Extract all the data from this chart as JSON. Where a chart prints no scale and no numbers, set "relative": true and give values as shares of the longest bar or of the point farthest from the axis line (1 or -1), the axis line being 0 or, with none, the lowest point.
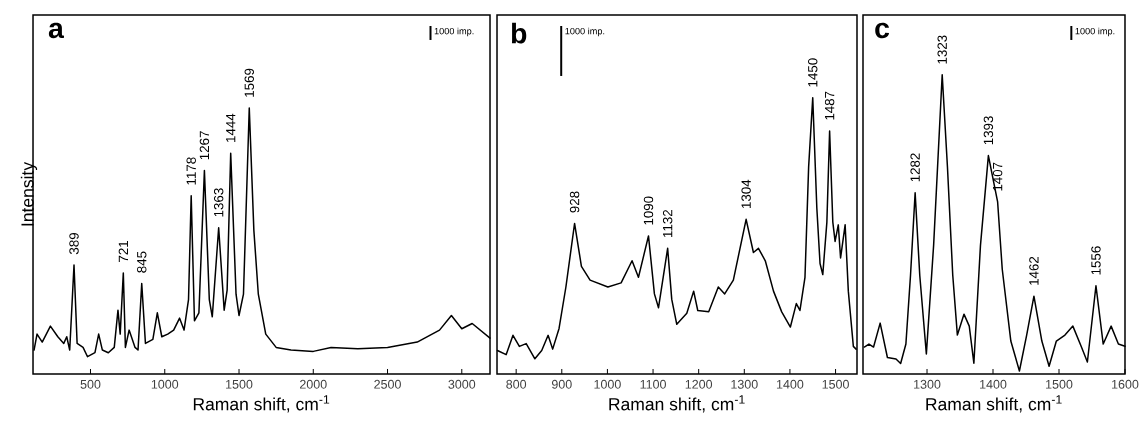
{
  "chart_data": [
    {
      "type": "line",
      "title": "a",
      "xlabel": "Raman shift, cm$^{-1}$",
      "ylabel": "Intensity",
      "relative": true,
      "color": "#000000",
      "xlim": [
        113,
        3190
      ],
      "xticks": [
        500,
        1000,
        1500,
        2000,
        2500,
        3000
      ],
      "x": [
        120,
        140,
        175,
        230,
        280,
        320,
        340,
        360,
        389,
        410,
        450,
        480,
        530,
        555,
        580,
        620,
        660,
        685,
        700,
        721,
        735,
        760,
        800,
        820,
        845,
        870,
        920,
        950,
        980,
        1020,
        1060,
        1100,
        1130,
        1160,
        1178,
        1200,
        1230,
        1267,
        1300,
        1320,
        1363,
        1400,
        1420,
        1444,
        1480,
        1500,
        1530,
        1569,
        1600,
        1630,
        1680,
        1750,
        1850,
        2000,
        2120,
        2300,
        2500,
        2700,
        2850,
        2930,
        3000,
        3070,
        3190
      ],
      "values": [
        0.09,
        0.15,
        0.12,
        0.18,
        0.14,
        0.115,
        0.14,
        0.09,
        0.41,
        0.115,
        0.1,
        0.065,
        0.08,
        0.15,
        0.09,
        0.08,
        0.1,
        0.24,
        0.15,
        0.38,
        0.1,
        0.165,
        0.1,
        0.09,
        0.34,
        0.115,
        0.13,
        0.23,
        0.14,
        0.15,
        0.165,
        0.21,
        0.165,
        0.28,
        0.67,
        0.2,
        0.23,
        0.765,
        0.28,
        0.215,
        0.55,
        0.24,
        0.315,
        0.83,
        0.3,
        0.22,
        0.3,
        1.0,
        0.54,
        0.3,
        0.15,
        0.1,
        0.09,
        0.085,
        0.1,
        0.095,
        0.1,
        0.12,
        0.165,
        0.22,
        0.17,
        0.19,
        0.135
      ],
      "annotations": [
        "1000 imp.",
        {
          "text": "389",
          "x": 389,
          "y": 0.41
        },
        {
          "text": "721",
          "x": 721,
          "y": 0.38
        },
        {
          "text": "845",
          "x": 845,
          "y": 0.34
        },
        {
          "text": "1178",
          "x": 1178,
          "y": 0.67
        },
        {
          "text": "1267",
          "x": 1267,
          "y": 0.765
        },
        {
          "text": "1363",
          "x": 1363,
          "y": 0.55
        },
        {
          "text": "1444",
          "x": 1444,
          "y": 0.83
        },
        {
          "text": "1569",
          "x": 1569,
          "y": 1.0
        }
      ]
    },
    {
      "type": "line",
      "title": "b",
      "xlabel": "Raman shift, cm$^{-1}$",
      "relative": true,
      "color": "#000000",
      "xlim": [
        758,
        1547
      ],
      "xticks": [
        800,
        900,
        1000,
        1100,
        1200,
        1300,
        1400,
        1500
      ],
      "x": [
        759,
        778,
        793,
        807,
        822,
        841,
        856,
        870,
        880,
        894,
        909,
        928,
        943,
        962,
        1001,
        1030,
        1054,
        1068,
        1090,
        1103,
        1112,
        1132,
        1141,
        1152,
        1174,
        1189,
        1198,
        1222,
        1243,
        1257,
        1276,
        1304,
        1320,
        1331,
        1346,
        1364,
        1382,
        1401,
        1414,
        1422,
        1433,
        1441,
        1450,
        1459,
        1466,
        1472,
        1481,
        1487,
        1494,
        1499,
        1506,
        1511,
        1521,
        1528,
        1539,
        1545
      ],
      "values": [
        0.085,
        0.07,
        0.14,
        0.1,
        0.11,
        0.055,
        0.085,
        0.14,
        0.09,
        0.165,
        0.315,
        0.545,
        0.39,
        0.34,
        0.315,
        0.33,
        0.41,
        0.35,
        0.5,
        0.29,
        0.24,
        0.455,
        0.27,
        0.18,
        0.22,
        0.3,
        0.23,
        0.225,
        0.315,
        0.29,
        0.34,
        0.56,
        0.44,
        0.455,
        0.41,
        0.3,
        0.225,
        0.17,
        0.255,
        0.23,
        0.35,
        0.75,
        1.0,
        0.6,
        0.4,
        0.36,
        0.55,
        0.88,
        0.55,
        0.48,
        0.54,
        0.42,
        0.54,
        0.3,
        0.1,
        0.09
      ],
      "annotations": [
        "1000 imp.",
        {
          "text": "928",
          "x": 928,
          "y": 0.545
        },
        {
          "text": "1090",
          "x": 1090,
          "y": 0.5
        },
        {
          "text": "1132",
          "x": 1132,
          "y": 0.455
        },
        {
          "text": "1304",
          "x": 1304,
          "y": 0.56
        },
        {
          "text": "1450",
          "x": 1450,
          "y": 1.0
        },
        {
          "text": "1487",
          "x": 1487,
          "y": 0.88
        }
      ]
    },
    {
      "type": "line",
      "title": "c",
      "xlabel": "Raman shift, cm$^{-1}$",
      "relative": true,
      "color": "#000000",
      "xlim": [
        1203,
        1600
      ],
      "xticks": [
        1300,
        1400,
        1500,
        1600
      ],
      "x": [
        1205,
        1212,
        1219,
        1229,
        1240,
        1253,
        1260,
        1268,
        1275,
        1282,
        1289,
        1299,
        1310,
        1323,
        1331,
        1339,
        1346,
        1356,
        1364,
        1371,
        1381,
        1393,
        1407,
        1414,
        1427,
        1440,
        1451,
        1462,
        1474,
        1485,
        1496,
        1509,
        1521,
        1534,
        1543,
        1556,
        1567,
        1579,
        1590,
        1600
      ],
      "values": [
        0.09,
        0.1,
        0.09,
        0.17,
        0.055,
        0.05,
        0.035,
        0.1,
        0.33,
        0.606,
        0.33,
        0.067,
        0.43,
        1.0,
        0.69,
        0.33,
        0.13,
        0.2,
        0.16,
        0.036,
        0.43,
        0.73,
        0.575,
        0.35,
        0.11,
        0.01,
        0.13,
        0.26,
        0.11,
        0.026,
        0.11,
        0.13,
        0.16,
        0.09,
        0.04,
        0.295,
        0.1,
        0.16,
        0.1,
        0.093
      ],
      "annotations": [
        "1000 imp.",
        {
          "text": "1282",
          "x": 1282,
          "y": 0.606
        },
        {
          "text": "1323",
          "x": 1323,
          "y": 1.0
        },
        {
          "text": "1393",
          "x": 1393,
          "y": 0.73
        },
        {
          "text": "1407",
          "x": 1407,
          "y": 0.575
        },
        {
          "text": "1462",
          "x": 1462,
          "y": 0.26
        },
        {
          "text": "1556",
          "x": 1556,
          "y": 0.295
        }
      ]
    }
  ]
}
